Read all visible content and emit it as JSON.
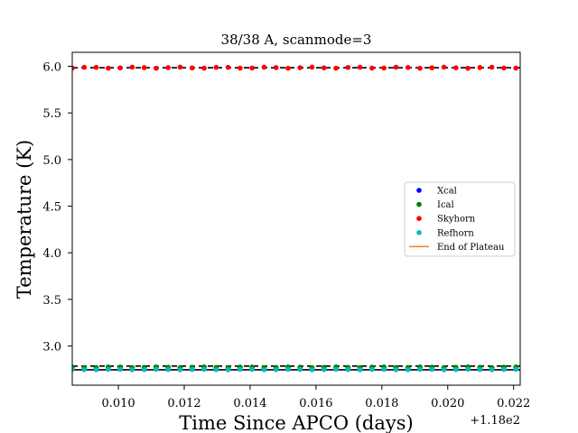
{
  "chart_data": {
    "type": "scatter",
    "title": "38/38 A, scanmode=3",
    "xlabel": "Time Since APCO (days)",
    "ylabel": "Temperature (K)",
    "x_offset_label": "+1.18e2",
    "xlim": [
      118.0086,
      118.0222
    ],
    "ylim": [
      2.58,
      6.15
    ],
    "x_ticks": [
      118.01,
      118.012,
      118.014,
      118.016,
      118.018,
      118.02,
      118.022
    ],
    "x_tick_labels": [
      "0.010",
      "0.012",
      "0.014",
      "0.016",
      "0.018",
      "0.020",
      "0.022"
    ],
    "y_ticks": [
      3.0,
      3.5,
      4.0,
      4.5,
      5.0,
      5.5,
      6.0
    ],
    "y_tick_labels": [
      "3.0",
      "3.5",
      "4.0",
      "4.5",
      "5.0",
      "5.5",
      "6.0"
    ],
    "grid": false,
    "legend_position": "center-right",
    "x_start": 118.0086,
    "x_step": 0.000364,
    "n_points": 38,
    "series": [
      {
        "name": "Xcal",
        "color": "#0000ff",
        "marker": "dot",
        "level": 2.765,
        "jitter": 0.004
      },
      {
        "name": "Ical",
        "color": "#008000",
        "marker": "dot",
        "level": 2.772,
        "jitter": 0.004
      },
      {
        "name": "Skyhorn",
        "color": "#ff0000",
        "marker": "dot",
        "level": 5.985,
        "jitter": 0.006
      },
      {
        "name": "Refhorn",
        "color": "#00bfbf",
        "marker": "dot",
        "level": 2.748,
        "jitter": 0.003
      },
      {
        "name": "End of Plateau",
        "color": "#ff7f0e",
        "marker": "line"
      }
    ],
    "reference_lines": [
      {
        "y": 5.985,
        "color": "#000000",
        "style": "dashed"
      },
      {
        "y": 2.785,
        "color": "#000000",
        "style": "dashed"
      },
      {
        "y": 2.745,
        "color": "#000000",
        "style": "solid"
      }
    ]
  }
}
